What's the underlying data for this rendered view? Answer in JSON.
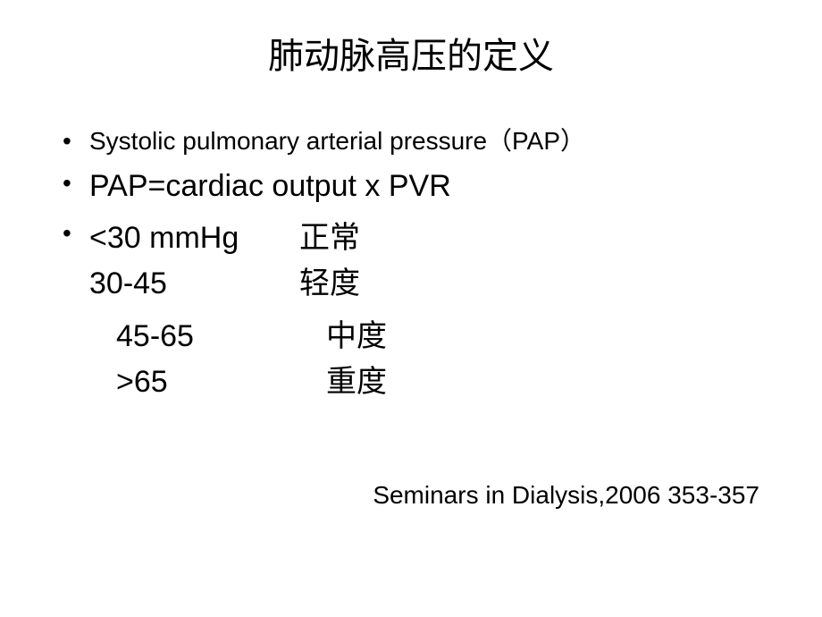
{
  "slide": {
    "title": "肺动脉高压的定义",
    "bullet1": "Systolic pulmonary arterial pressure（PAP）",
    "bullet2": "PAP=cardiac output x PVR",
    "classification": {
      "rows": [
        {
          "range": "<30 mmHg",
          "label": "正常"
        },
        {
          "range": "30-45",
          "label": "轻度"
        },
        {
          "range": "45-65",
          "label": "中度"
        },
        {
          "range": ">65",
          "label": "重度"
        }
      ]
    },
    "citation": "Seminars in Dialysis,2006 353-357"
  },
  "styling": {
    "background_color": "#ffffff",
    "text_color": "#000000",
    "title_fontsize": 40,
    "body_fontsize_small": 28,
    "body_fontsize_large": 34,
    "font_family_cjk": "SimSun",
    "font_family_latin": "Arial"
  }
}
